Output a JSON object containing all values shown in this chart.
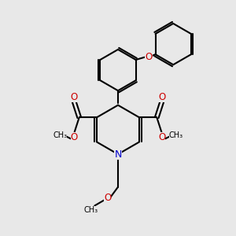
{
  "bg_color": "#e8e8e8",
  "bond_color": "#000000",
  "bond_width": 1.5,
  "n_color": "#0000cc",
  "o_color": "#cc0000",
  "fig_size": [
    3.0,
    3.0
  ],
  "dpi": 100,
  "xlim": [
    0,
    10
  ],
  "ylim": [
    0,
    10
  ]
}
